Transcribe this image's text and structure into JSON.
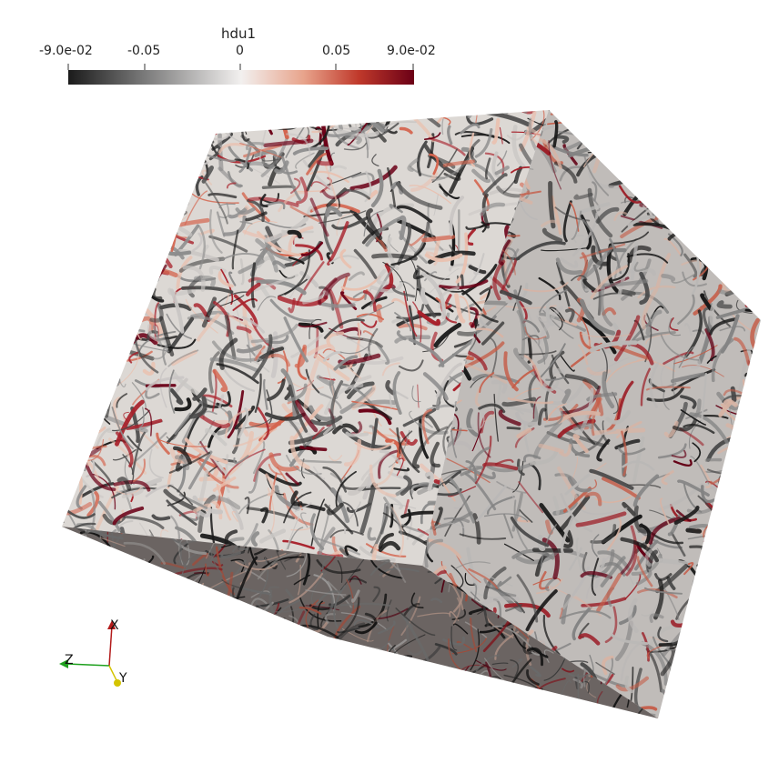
{
  "colorbar": {
    "title": "hdu1",
    "ticks": [
      "-9.0e-02",
      "-0.05",
      "0",
      "0.05",
      "9.0e-02"
    ],
    "colors": [
      "#1b1b1b",
      "#7a7a7a",
      "#f2f0ef",
      "#e8a48c",
      "#c0392b",
      "#6b0016"
    ]
  },
  "axes": {
    "x": "X",
    "y": "Y",
    "z": "Z",
    "x_color": "#b31b1b",
    "y_color": "#d4c400",
    "z_color": "#1ea01e"
  },
  "scene": {
    "base_color": "#d8d4d0",
    "palette": [
      "#1b1b1b",
      "#4a4a4a",
      "#8d8d8d",
      "#c9c6c4",
      "#e9c1b0",
      "#d4654f",
      "#a8202a",
      "#6b0016"
    ]
  }
}
